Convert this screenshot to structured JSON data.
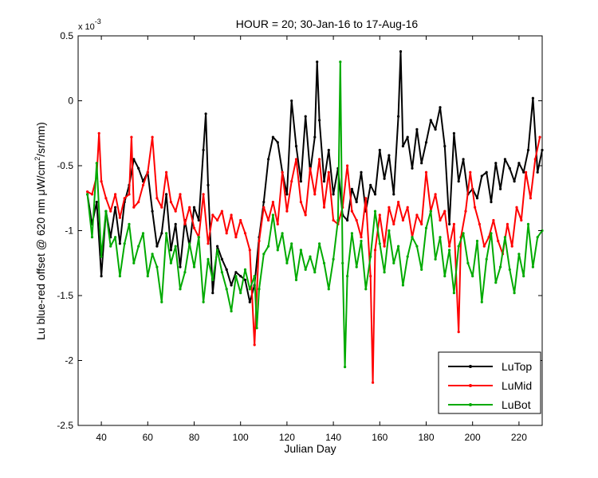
{
  "chart_data": {
    "type": "line",
    "title": "HOUR = 20; 30-Jan-16 to 17-Aug-16",
    "xlabel": "Julian Day",
    "ylabel": "Lu blue-red offset @ 620 nm μW/cm²/sr/nm",
    "ylabel_parts": {
      "pre": "Lu blue-red offset @ 620 nm ",
      "mu": "μ",
      "unit_a": "W/cm",
      "sup": "2",
      "unit_b": "/sr/nm)"
    },
    "y_multiplier": {
      "base": "x 10",
      "exp": "-3"
    },
    "xlim": [
      30,
      230
    ],
    "ylim": [
      -2.5,
      0.5
    ],
    "x_ticks": [
      40,
      60,
      80,
      100,
      120,
      140,
      160,
      180,
      200,
      220
    ],
    "x_tick_labels": [
      "40",
      "60",
      "80",
      "100",
      "120",
      "140",
      "160",
      "180",
      "200",
      "220"
    ],
    "y_ticks": [
      -2.5,
      -2,
      -1.5,
      -1,
      -0.5,
      0,
      0.5
    ],
    "y_tick_labels": [
      "-2.5",
      "-2",
      "-1.5",
      "-1",
      "-0.5",
      "0",
      "0.5"
    ],
    "grid": false,
    "legend_position": "bottom-right",
    "series": [
      {
        "name": "LuTop",
        "color": "#000000",
        "points": [
          [
            34,
            -0.72
          ],
          [
            36,
            -0.95
          ],
          [
            38,
            -0.78
          ],
          [
            40,
            -1.35
          ],
          [
            42,
            -0.85
          ],
          [
            44,
            -1.05
          ],
          [
            46,
            -0.82
          ],
          [
            48,
            -1.1
          ],
          [
            50,
            -0.78
          ],
          [
            52,
            -0.65
          ],
          [
            54,
            -0.45
          ],
          [
            56,
            -0.52
          ],
          [
            58,
            -0.62
          ],
          [
            60,
            -0.55
          ],
          [
            62,
            -0.85
          ],
          [
            64,
            -1.12
          ],
          [
            66,
            -1.02
          ],
          [
            68,
            -0.72
          ],
          [
            70,
            -1.15
          ],
          [
            72,
            -0.95
          ],
          [
            74,
            -1.28
          ],
          [
            76,
            -0.92
          ],
          [
            78,
            -1.12
          ],
          [
            80,
            -0.82
          ],
          [
            82,
            -0.92
          ],
          [
            84,
            -0.38
          ],
          [
            85,
            -0.1
          ],
          [
            86,
            -0.65
          ],
          [
            88,
            -1.48
          ],
          [
            90,
            -1.12
          ],
          [
            92,
            -1.22
          ],
          [
            94,
            -1.3
          ],
          [
            96,
            -1.42
          ],
          [
            98,
            -1.32
          ],
          [
            100,
            -1.35
          ],
          [
            102,
            -1.38
          ],
          [
            104,
            -1.55
          ],
          [
            106,
            -1.42
          ],
          [
            108,
            -1.05
          ],
          [
            110,
            -0.78
          ],
          [
            112,
            -0.45
          ],
          [
            114,
            -0.28
          ],
          [
            116,
            -0.32
          ],
          [
            118,
            -0.55
          ],
          [
            120,
            -0.72
          ],
          [
            122,
            0.0
          ],
          [
            124,
            -0.35
          ],
          [
            126,
            -0.62
          ],
          [
            128,
            -0.12
          ],
          [
            130,
            -0.55
          ],
          [
            132,
            -0.28
          ],
          [
            133,
            0.3
          ],
          [
            134,
            -0.15
          ],
          [
            136,
            -0.62
          ],
          [
            138,
            -0.38
          ],
          [
            140,
            -0.72
          ],
          [
            142,
            -0.52
          ],
          [
            144,
            -0.88
          ],
          [
            146,
            -0.92
          ],
          [
            148,
            -0.68
          ],
          [
            150,
            -0.78
          ],
          [
            152,
            -0.55
          ],
          [
            154,
            -0.85
          ],
          [
            156,
            -0.65
          ],
          [
            158,
            -0.72
          ],
          [
            160,
            -0.38
          ],
          [
            162,
            -0.6
          ],
          [
            164,
            -0.42
          ],
          [
            166,
            -0.72
          ],
          [
            168,
            -0.12
          ],
          [
            169,
            0.38
          ],
          [
            170,
            -0.35
          ],
          [
            172,
            -0.28
          ],
          [
            174,
            -0.52
          ],
          [
            176,
            -0.22
          ],
          [
            178,
            -0.48
          ],
          [
            180,
            -0.32
          ],
          [
            182,
            -0.15
          ],
          [
            184,
            -0.22
          ],
          [
            186,
            -0.05
          ],
          [
            188,
            -0.35
          ],
          [
            190,
            -0.95
          ],
          [
            192,
            -0.25
          ],
          [
            194,
            -0.62
          ],
          [
            196,
            -0.45
          ],
          [
            198,
            -0.72
          ],
          [
            200,
            -0.68
          ],
          [
            202,
            -0.75
          ],
          [
            204,
            -0.58
          ],
          [
            206,
            -0.55
          ],
          [
            208,
            -0.78
          ],
          [
            210,
            -0.48
          ],
          [
            212,
            -0.68
          ],
          [
            214,
            -0.45
          ],
          [
            216,
            -0.52
          ],
          [
            218,
            -0.62
          ],
          [
            220,
            -0.48
          ],
          [
            222,
            -0.55
          ],
          [
            224,
            -0.38
          ],
          [
            226,
            0.02
          ],
          [
            228,
            -0.55
          ],
          [
            230,
            -0.38
          ]
        ]
      },
      {
        "name": "LuMid",
        "color": "#ff0000",
        "points": [
          [
            34,
            -0.7
          ],
          [
            36,
            -0.72
          ],
          [
            38,
            -0.58
          ],
          [
            39,
            -0.25
          ],
          [
            40,
            -0.62
          ],
          [
            42,
            -0.75
          ],
          [
            44,
            -0.85
          ],
          [
            46,
            -0.72
          ],
          [
            48,
            -0.9
          ],
          [
            50,
            -0.75
          ],
          [
            52,
            -0.72
          ],
          [
            53,
            -0.28
          ],
          [
            54,
            -0.82
          ],
          [
            56,
            -0.78
          ],
          [
            58,
            -0.65
          ],
          [
            60,
            -0.55
          ],
          [
            62,
            -0.28
          ],
          [
            64,
            -0.75
          ],
          [
            66,
            -0.82
          ],
          [
            68,
            -0.55
          ],
          [
            70,
            -0.78
          ],
          [
            72,
            -0.85
          ],
          [
            74,
            -0.72
          ],
          [
            76,
            -0.95
          ],
          [
            78,
            -0.82
          ],
          [
            80,
            -0.98
          ],
          [
            82,
            -1.05
          ],
          [
            84,
            -0.72
          ],
          [
            86,
            -1.1
          ],
          [
            88,
            -0.88
          ],
          [
            90,
            -0.92
          ],
          [
            92,
            -0.85
          ],
          [
            94,
            -1.02
          ],
          [
            96,
            -0.88
          ],
          [
            98,
            -1.05
          ],
          [
            100,
            -0.92
          ],
          [
            102,
            -1.02
          ],
          [
            104,
            -1.15
          ],
          [
            106,
            -1.88
          ],
          [
            108,
            -1.08
          ],
          [
            110,
            -0.82
          ],
          [
            112,
            -0.92
          ],
          [
            114,
            -0.78
          ],
          [
            116,
            -0.95
          ],
          [
            118,
            -0.55
          ],
          [
            120,
            -0.85
          ],
          [
            122,
            -0.62
          ],
          [
            124,
            -0.45
          ],
          [
            126,
            -0.78
          ],
          [
            128,
            -0.88
          ],
          [
            130,
            -0.52
          ],
          [
            132,
            -0.72
          ],
          [
            134,
            -0.45
          ],
          [
            136,
            -0.82
          ],
          [
            138,
            -0.55
          ],
          [
            140,
            -0.92
          ],
          [
            142,
            -0.95
          ],
          [
            144,
            -0.82
          ],
          [
            146,
            -0.5
          ],
          [
            148,
            -0.85
          ],
          [
            150,
            -0.92
          ],
          [
            152,
            -1.05
          ],
          [
            154,
            -0.75
          ],
          [
            156,
            -1.35
          ],
          [
            157,
            -2.17
          ],
          [
            158,
            -1.15
          ],
          [
            160,
            -0.88
          ],
          [
            162,
            -1.12
          ],
          [
            164,
            -0.82
          ],
          [
            166,
            -0.95
          ],
          [
            168,
            -0.78
          ],
          [
            170,
            -0.92
          ],
          [
            172,
            -0.82
          ],
          [
            174,
            -1.05
          ],
          [
            176,
            -0.88
          ],
          [
            178,
            -0.95
          ],
          [
            180,
            -0.55
          ],
          [
            182,
            -0.85
          ],
          [
            184,
            -0.72
          ],
          [
            186,
            -0.92
          ],
          [
            188,
            -0.85
          ],
          [
            190,
            -1.12
          ],
          [
            192,
            -0.95
          ],
          [
            194,
            -1.78
          ],
          [
            195,
            -1.05
          ],
          [
            197,
            -0.85
          ],
          [
            199,
            -0.55
          ],
          [
            201,
            -0.82
          ],
          [
            203,
            -0.95
          ],
          [
            205,
            -1.12
          ],
          [
            207,
            -1.05
          ],
          [
            209,
            -0.92
          ],
          [
            211,
            -1.08
          ],
          [
            213,
            -1.18
          ],
          [
            215,
            -0.95
          ],
          [
            217,
            -1.12
          ],
          [
            219,
            -0.82
          ],
          [
            221,
            -0.92
          ],
          [
            223,
            -0.55
          ],
          [
            225,
            -0.75
          ],
          [
            227,
            -0.45
          ],
          [
            229,
            -0.28
          ]
        ]
      },
      {
        "name": "LuBot",
        "color": "#00aa00",
        "points": [
          [
            34,
            -0.72
          ],
          [
            36,
            -1.05
          ],
          [
            38,
            -0.48
          ],
          [
            40,
            -1.2
          ],
          [
            42,
            -0.85
          ],
          [
            44,
            -1.12
          ],
          [
            46,
            -1.05
          ],
          [
            48,
            -1.35
          ],
          [
            50,
            -1.1
          ],
          [
            52,
            -0.95
          ],
          [
            54,
            -1.25
          ],
          [
            56,
            -1.12
          ],
          [
            58,
            -1.02
          ],
          [
            60,
            -1.35
          ],
          [
            62,
            -1.18
          ],
          [
            64,
            -1.28
          ],
          [
            66,
            -1.55
          ],
          [
            68,
            -1.02
          ],
          [
            70,
            -1.25
          ],
          [
            72,
            -1.12
          ],
          [
            74,
            -1.45
          ],
          [
            76,
            -1.32
          ],
          [
            78,
            -1.1
          ],
          [
            80,
            -1.28
          ],
          [
            82,
            -1.05
          ],
          [
            84,
            -1.55
          ],
          [
            86,
            -1.22
          ],
          [
            88,
            -1.38
          ],
          [
            90,
            -1.15
          ],
          [
            92,
            -1.32
          ],
          [
            94,
            -1.45
          ],
          [
            96,
            -1.62
          ],
          [
            98,
            -1.35
          ],
          [
            100,
            -1.48
          ],
          [
            102,
            -1.3
          ],
          [
            104,
            -1.45
          ],
          [
            106,
            -1.35
          ],
          [
            107,
            -1.75
          ],
          [
            108,
            -1.45
          ],
          [
            110,
            -1.18
          ],
          [
            112,
            -1.12
          ],
          [
            114,
            -0.88
          ],
          [
            116,
            -1.15
          ],
          [
            118,
            -1.02
          ],
          [
            120,
            -1.25
          ],
          [
            122,
            -1.1
          ],
          [
            124,
            -1.38
          ],
          [
            126,
            -1.15
          ],
          [
            128,
            -1.3
          ],
          [
            130,
            -1.2
          ],
          [
            132,
            -1.32
          ],
          [
            134,
            -1.1
          ],
          [
            136,
            -1.25
          ],
          [
            138,
            -1.45
          ],
          [
            140,
            -1.22
          ],
          [
            142,
            -0.92
          ],
          [
            143,
            0.3
          ],
          [
            144,
            -1.25
          ],
          [
            145,
            -2.05
          ],
          [
            146,
            -1.35
          ],
          [
            148,
            -1.02
          ],
          [
            150,
            -1.28
          ],
          [
            152,
            -1.08
          ],
          [
            154,
            -1.45
          ],
          [
            156,
            -1.2
          ],
          [
            158,
            -0.85
          ],
          [
            160,
            -1.1
          ],
          [
            162,
            -1.32
          ],
          [
            164,
            -1.0
          ],
          [
            166,
            -1.25
          ],
          [
            168,
            -1.12
          ],
          [
            170,
            -1.42
          ],
          [
            172,
            -1.2
          ],
          [
            174,
            -1.05
          ],
          [
            176,
            -1.12
          ],
          [
            178,
            -1.3
          ],
          [
            180,
            -0.98
          ],
          [
            182,
            -0.85
          ],
          [
            184,
            -1.22
          ],
          [
            186,
            -1.05
          ],
          [
            188,
            -1.35
          ],
          [
            190,
            -1.15
          ],
          [
            192,
            -1.48
          ],
          [
            194,
            -1.12
          ],
          [
            196,
            -1.02
          ],
          [
            198,
            -1.25
          ],
          [
            200,
            -1.35
          ],
          [
            202,
            -1.08
          ],
          [
            204,
            -1.55
          ],
          [
            206,
            -1.22
          ],
          [
            208,
            -1.02
          ],
          [
            210,
            -1.4
          ],
          [
            212,
            -1.28
          ],
          [
            214,
            -1.05
          ],
          [
            216,
            -1.3
          ],
          [
            218,
            -1.48
          ],
          [
            220,
            -1.18
          ],
          [
            222,
            -1.35
          ],
          [
            224,
            -0.95
          ],
          [
            226,
            -1.28
          ],
          [
            228,
            -1.05
          ],
          [
            230,
            -1.0
          ]
        ]
      }
    ]
  }
}
